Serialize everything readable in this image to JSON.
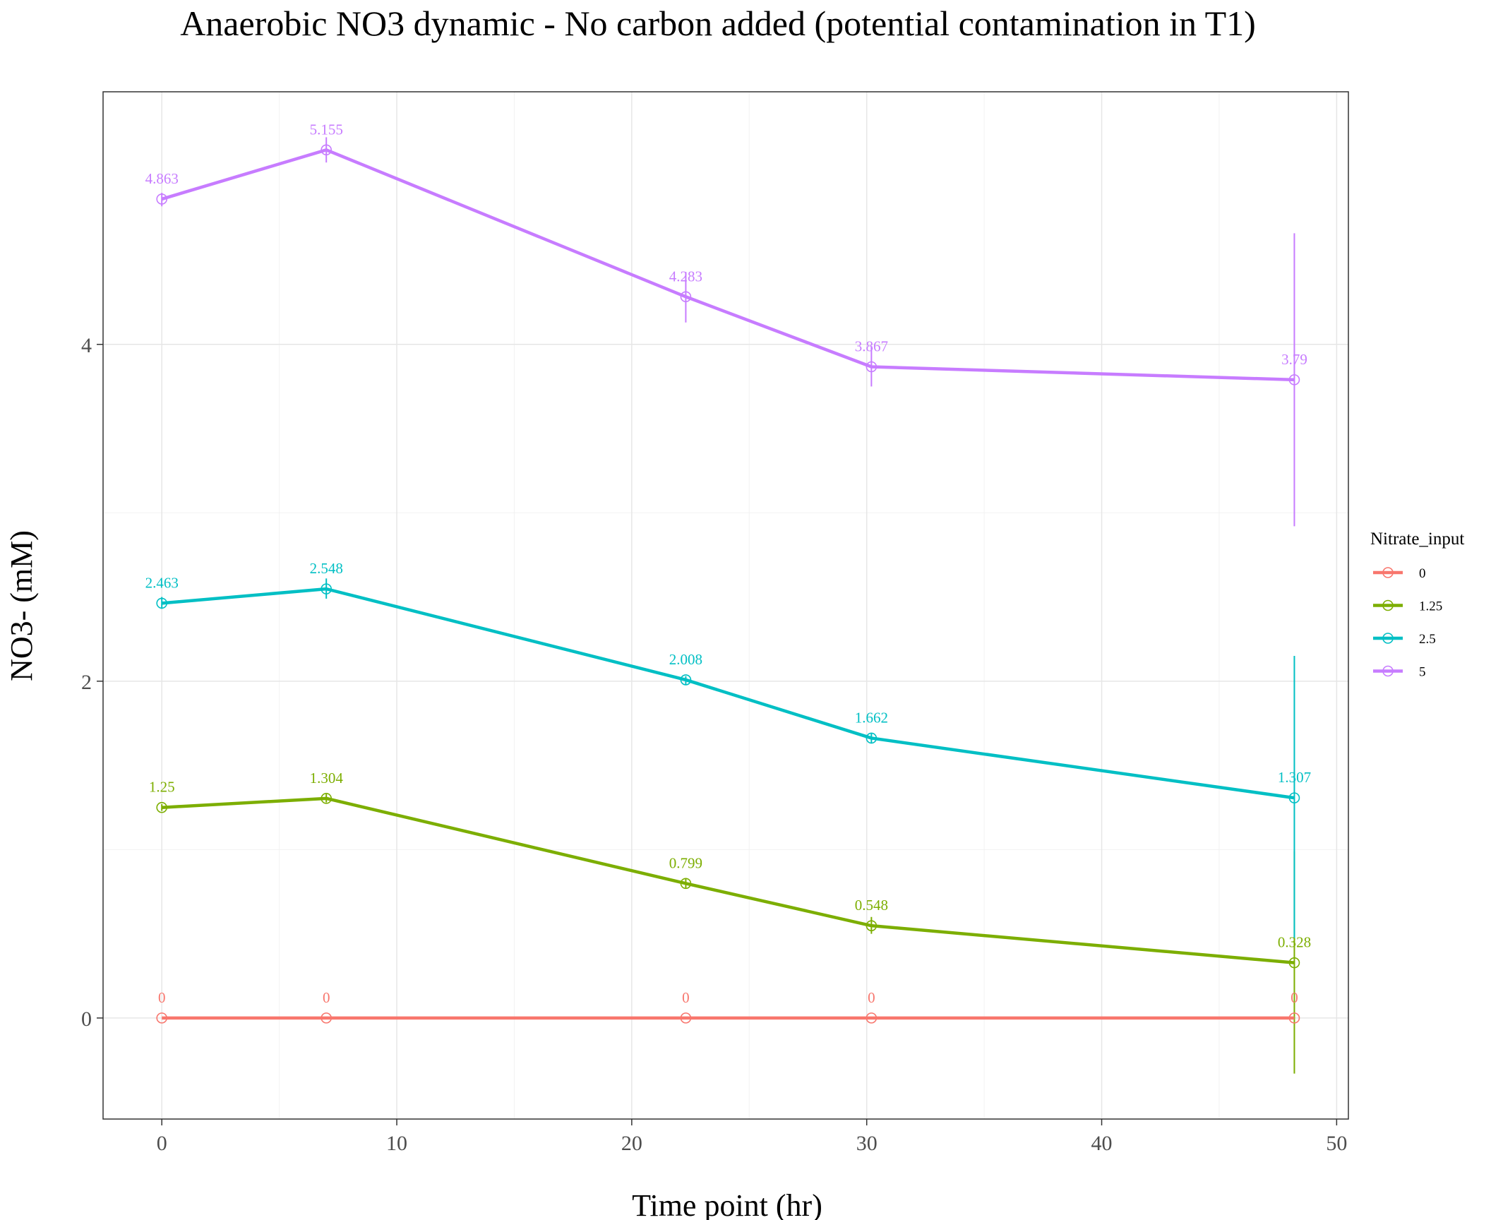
{
  "chart_data": {
    "type": "line",
    "title": "Anaerobic NO3 dynamic - No carbon added (potential contamination in T1)",
    "xlabel": "Time point (hr)",
    "ylabel": "NO3- (mM)",
    "xlim": [
      -2.5,
      50.5
    ],
    "ylim": [
      -0.6,
      5.5
    ],
    "x_ticks": [
      0,
      10,
      20,
      30,
      40,
      50
    ],
    "y_ticks": [
      0,
      2,
      4
    ],
    "grid": true,
    "legend": {
      "title": "Nitrate_input",
      "position": "right"
    },
    "x": [
      0,
      7,
      22.3,
      30.2,
      48.2
    ],
    "series": [
      {
        "name": "0",
        "color": "#F8766D",
        "values": [
          0,
          0,
          0,
          0,
          0
        ],
        "labels": [
          "0",
          "0",
          "0",
          "0",
          "0"
        ],
        "error": [
          [
            0,
            0
          ],
          [
            0,
            0
          ],
          [
            0,
            0
          ],
          [
            0,
            0
          ],
          [
            0,
            0
          ]
        ]
      },
      {
        "name": "1.25",
        "color": "#7CAE00",
        "values": [
          1.25,
          1.304,
          0.799,
          0.548,
          0.328
        ],
        "labels": [
          "1.25",
          "1.304",
          "0.799",
          "0.548",
          "0.328"
        ],
        "error": [
          [
            1.23,
            1.27
          ],
          [
            1.28,
            1.33
          ],
          [
            0.77,
            0.83
          ],
          [
            0.5,
            0.6
          ],
          [
            -0.33,
            0.99
          ]
        ]
      },
      {
        "name": "2.5",
        "color": "#00BFC4",
        "values": [
          2.463,
          2.548,
          2.008,
          1.662,
          1.307
        ],
        "labels": [
          "2.463",
          "2.548",
          "2.008",
          "1.662",
          "1.307"
        ],
        "error": [
          [
            2.43,
            2.5
          ],
          [
            2.49,
            2.61
          ],
          [
            1.98,
            2.03
          ],
          [
            1.63,
            1.69
          ],
          [
            0.47,
            2.15
          ]
        ]
      },
      {
        "name": "5",
        "color": "#C77CFF",
        "values": [
          4.863,
          5.155,
          4.283,
          3.867,
          3.79
        ],
        "labels": [
          "4.863",
          "5.155",
          "4.283",
          "3.867",
          "3.79"
        ],
        "error": [
          [
            4.82,
            4.9
          ],
          [
            5.08,
            5.23
          ],
          [
            4.13,
            4.43
          ],
          [
            3.75,
            3.99
          ],
          [
            2.92,
            4.66
          ]
        ]
      }
    ]
  }
}
